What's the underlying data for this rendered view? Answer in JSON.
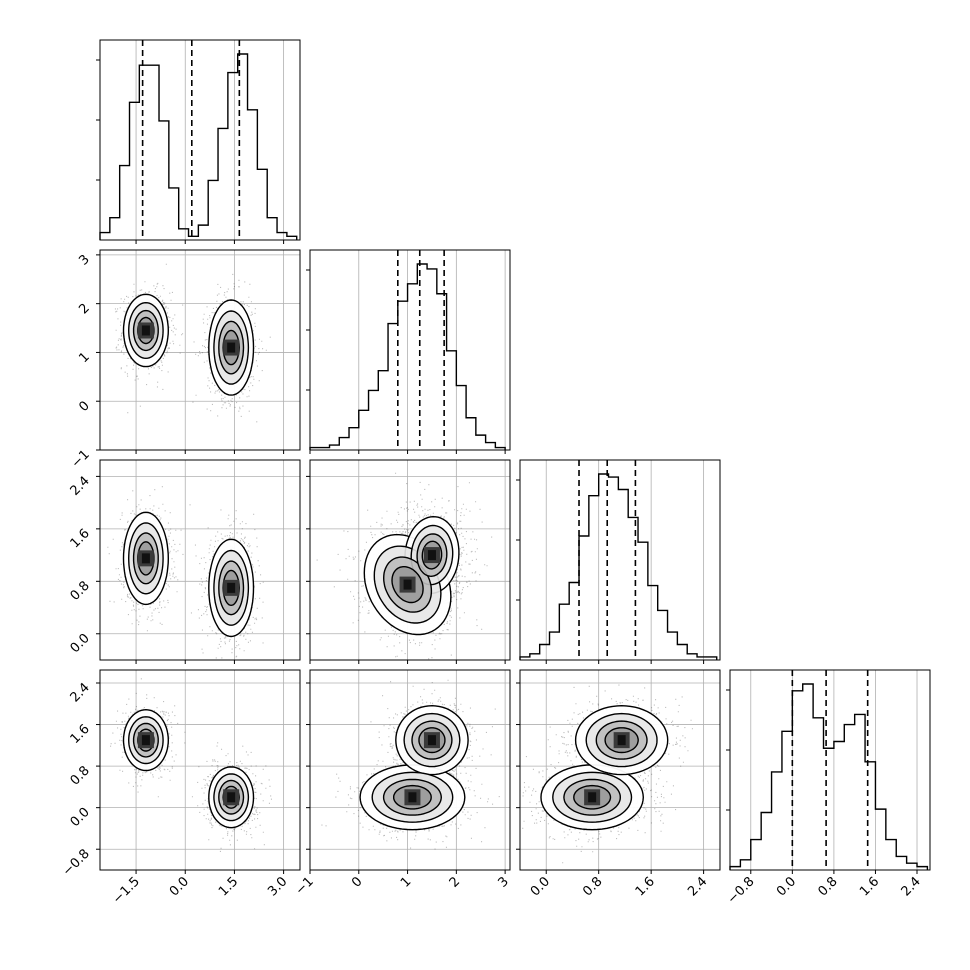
{
  "chart_data": {
    "type": "corner",
    "grid": true,
    "colors": {
      "line": "#000000",
      "grid": "#b0b0b0",
      "points": "#444444",
      "fill_light": "#e6e6e6",
      "fill_mid": "#9a9a9a",
      "fill_dark": "#3a3a3a"
    },
    "parameters": [
      {
        "range": [
          -2.6,
          3.5
        ],
        "ticks": [
          -1.5,
          0.0,
          1.5,
          3.0
        ],
        "tick_labels": [
          "−1.5",
          "0.0",
          "1.5",
          "3.0"
        ],
        "quantiles": [
          -1.3,
          0.2,
          1.65
        ],
        "hist_bins": [
          -2.6,
          -2.3,
          -2.0,
          -1.7,
          -1.4,
          -1.1,
          -0.8,
          -0.5,
          -0.2,
          0.1,
          0.4,
          0.7,
          1.0,
          1.3,
          1.6,
          1.9,
          2.2,
          2.5,
          2.8,
          3.1,
          3.4
        ],
        "hist_counts": [
          2,
          6,
          20,
          37,
          47,
          47,
          32,
          14,
          3,
          1,
          4,
          16,
          30,
          45,
          50,
          35,
          19,
          6,
          2,
          1
        ]
      },
      {
        "range": [
          -1.0,
          3.1
        ],
        "ticks": [
          -1,
          0,
          1,
          2,
          3
        ],
        "tick_labels": [
          "−1",
          "0",
          "1",
          "2",
          "3"
        ],
        "quantiles": [
          0.8,
          1.25,
          1.75
        ],
        "hist_bins": [
          -1.0,
          -0.8,
          -0.6,
          -0.4,
          -0.2,
          0.0,
          0.2,
          0.4,
          0.6,
          0.8,
          1.0,
          1.2,
          1.4,
          1.6,
          1.8,
          2.0,
          2.2,
          2.4,
          2.6,
          2.8,
          3.0
        ],
        "hist_counts": [
          1,
          1,
          2,
          5,
          9,
          16,
          24,
          32,
          51,
          60,
          67,
          75,
          73,
          63,
          40,
          26,
          13,
          6,
          3,
          1
        ]
      },
      {
        "range": [
          -0.4,
          2.65
        ],
        "ticks": [
          0.0,
          0.8,
          1.6,
          2.4
        ],
        "tick_labels": [
          "0.0",
          "0.8",
          "1.6",
          "2.4"
        ],
        "quantiles": [
          0.5,
          0.93,
          1.36
        ],
        "hist_bins": [
          -0.4,
          -0.25,
          -0.1,
          0.05,
          0.2,
          0.35,
          0.5,
          0.65,
          0.8,
          0.95,
          1.1,
          1.25,
          1.4,
          1.55,
          1.7,
          1.85,
          2.0,
          2.15,
          2.3,
          2.45,
          2.6
        ],
        "hist_counts": [
          1,
          2,
          5,
          9,
          18,
          25,
          40,
          53,
          60,
          59,
          55,
          46,
          38,
          24,
          16,
          9,
          5,
          2,
          1,
          1
        ]
      },
      {
        "range": [
          -1.2,
          2.65
        ],
        "ticks": [
          -0.8,
          0.0,
          0.8,
          1.6,
          2.4
        ],
        "tick_labels": [
          "−0.8",
          "0.0",
          "0.8",
          "1.6",
          "2.4"
        ],
        "quantiles": [
          0.0,
          0.65,
          1.45
        ],
        "hist_bins": [
          -1.2,
          -1.0,
          -0.8,
          -0.6,
          -0.4,
          -0.2,
          0.0,
          0.2,
          0.4,
          0.6,
          0.8,
          1.0,
          1.2,
          1.4,
          1.6,
          1.8,
          2.0,
          2.2,
          2.4,
          2.6
        ],
        "hist_counts": [
          1,
          3,
          9,
          17,
          29,
          41,
          53,
          55,
          45,
          36,
          38,
          43,
          46,
          32,
          18,
          9,
          4,
          2,
          1
        ]
      }
    ],
    "clusters": [
      {
        "mean": [
          -1.2,
          1.45,
          1.15,
          1.3
        ],
        "sd": [
          0.35,
          0.38,
          0.36,
          0.3
        ],
        "contour_scales": [
          1.4,
          2.15,
          3.0,
          3.9
        ]
      },
      {
        "mean": [
          1.4,
          1.1,
          0.7,
          0.2
        ],
        "sd": [
          0.35,
          0.5,
          0.38,
          0.3
        ],
        "contour_scales": [
          1.4,
          2.15,
          3.0,
          3.9
        ]
      }
    ],
    "panel_clusters": {
      "2-1": [
        {
          "mean": [
            1.0,
            0.75
          ],
          "sd": [
            0.48,
            0.36
          ],
          "rot": -0.5,
          "scale": 1.0
        },
        {
          "mean": [
            1.5,
            1.2
          ],
          "sd": [
            0.35,
            0.38
          ],
          "rot": -0.4,
          "scale": 0.8
        }
      ],
      "3-1": [
        {
          "mean": [
            1.1,
            0.2
          ],
          "sd": [
            0.55,
            0.32
          ],
          "rot": 0.0,
          "scale": 1.0
        },
        {
          "mean": [
            1.5,
            1.3
          ],
          "sd": [
            0.38,
            0.34
          ],
          "rot": 0.0,
          "scale": 1.0
        }
      ],
      "3-2": [
        {
          "mean": [
            0.7,
            0.2
          ],
          "sd": [
            0.4,
            0.32
          ],
          "rot": 0.0,
          "scale": 1.0
        },
        {
          "mean": [
            1.15,
            1.3
          ],
          "sd": [
            0.36,
            0.34
          ],
          "rot": 0.0,
          "scale": 1.0
        }
      ]
    }
  }
}
